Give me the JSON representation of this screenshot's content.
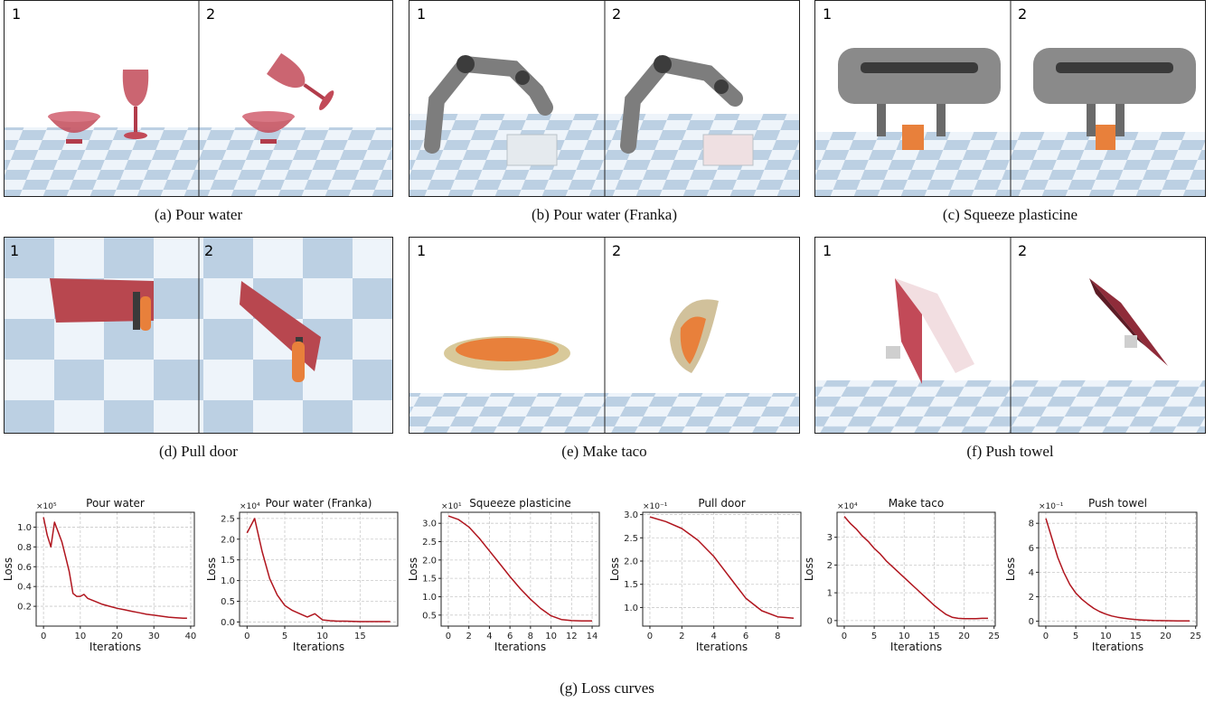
{
  "figure_labels": {
    "frame1": "1",
    "frame2": "2"
  },
  "panels": [
    {
      "id": "a",
      "caption": "(a) Pour water"
    },
    {
      "id": "b",
      "caption": "(b) Pour water (Franka)"
    },
    {
      "id": "c",
      "caption": "(c) Squeeze plasticine"
    },
    {
      "id": "d",
      "caption": "(d) Pull door"
    },
    {
      "id": "e",
      "caption": "(e) Make taco"
    },
    {
      "id": "f",
      "caption": "(f) Push towel"
    }
  ],
  "loss_caption": "(g) Loss curves",
  "colors": {
    "curve": "#b0151e",
    "checker": "#bcd0e3",
    "object_red": "#c24a58",
    "plasticine": "#e8803b"
  },
  "chart_data": [
    {
      "type": "line",
      "title": "Pour water",
      "xlabel": "Iterations",
      "ylabel": "Loss",
      "exponent": "×10⁵",
      "xlim": [
        -2,
        41
      ],
      "ylim": [
        0,
        1.15
      ],
      "xticks": [
        0,
        10,
        20,
        30,
        40
      ],
      "yticks": [
        0.2,
        0.4,
        0.6,
        0.8,
        1.0
      ],
      "ytick_labels": [
        "0.2",
        "0.4",
        "0.6",
        "0.8",
        "1.0"
      ],
      "grid": true,
      "x": [
        0,
        1,
        2,
        3,
        4,
        5,
        6,
        7,
        8,
        9,
        10,
        11,
        12,
        14,
        16,
        18,
        20,
        22,
        24,
        26,
        28,
        30,
        32,
        34,
        36,
        38,
        39
      ],
      "y": [
        1.1,
        0.92,
        0.8,
        1.05,
        0.95,
        0.85,
        0.7,
        0.55,
        0.33,
        0.3,
        0.3,
        0.32,
        0.28,
        0.25,
        0.22,
        0.2,
        0.18,
        0.165,
        0.15,
        0.135,
        0.12,
        0.11,
        0.1,
        0.09,
        0.085,
        0.08,
        0.08
      ]
    },
    {
      "type": "line",
      "title": "Pour water (Franka)",
      "xlabel": "Iterations",
      "ylabel": "Loss",
      "exponent": "×10⁴",
      "xlim": [
        -1,
        20
      ],
      "ylim": [
        -0.1,
        2.65
      ],
      "xticks": [
        0,
        5,
        10,
        15
      ],
      "yticks": [
        0.0,
        0.5,
        1.0,
        1.5,
        2.0,
        2.5
      ],
      "ytick_labels": [
        "0.0",
        "0.5",
        "1.0",
        "1.5",
        "2.0",
        "2.5"
      ],
      "grid": true,
      "x": [
        0,
        1,
        2,
        3,
        4,
        5,
        6,
        7,
        8,
        9,
        10,
        11,
        12,
        13,
        14,
        15,
        16,
        17,
        18,
        19
      ],
      "y": [
        2.15,
        2.5,
        1.7,
        1.05,
        0.65,
        0.4,
        0.28,
        0.2,
        0.12,
        0.2,
        0.05,
        0.03,
        0.02,
        0.02,
        0.015,
        0.01,
        0.01,
        0.01,
        0.01,
        0.01
      ]
    },
    {
      "type": "line",
      "title": "Squeeze plasticine",
      "xlabel": "Iterations",
      "ylabel": "Loss",
      "exponent": "×10¹",
      "xlim": [
        -0.7,
        14.7
      ],
      "ylim": [
        0.2,
        3.3
      ],
      "xticks": [
        0,
        2,
        4,
        6,
        8,
        10,
        12,
        14
      ],
      "yticks": [
        0.5,
        1.0,
        1.5,
        2.0,
        2.5,
        3.0
      ],
      "ytick_labels": [
        "0.5",
        "1.0",
        "1.5",
        "2.0",
        "2.5",
        "3.0"
      ],
      "grid": true,
      "x": [
        0,
        1,
        2,
        3,
        4,
        5,
        6,
        7,
        8,
        9,
        10,
        11,
        12,
        13,
        14
      ],
      "y": [
        3.2,
        3.1,
        2.9,
        2.6,
        2.25,
        1.9,
        1.55,
        1.22,
        0.93,
        0.68,
        0.48,
        0.38,
        0.35,
        0.34,
        0.34
      ]
    },
    {
      "type": "line",
      "title": "Pull door",
      "xlabel": "Iterations",
      "ylabel": "Loss",
      "exponent": "×10⁻¹",
      "xlim": [
        -0.45,
        9.45
      ],
      "ylim": [
        0.6,
        3.05
      ],
      "xticks": [
        0,
        2,
        4,
        6,
        8
      ],
      "yticks": [
        1.0,
        1.5,
        2.0,
        2.5,
        3.0
      ],
      "ytick_labels": [
        "1.0",
        "1.5",
        "2.0",
        "2.5",
        "3.0"
      ],
      "grid": true,
      "x": [
        0,
        1,
        2,
        3,
        4,
        5,
        6,
        7,
        8,
        9
      ],
      "y": [
        2.95,
        2.85,
        2.7,
        2.45,
        2.1,
        1.65,
        1.2,
        0.93,
        0.8,
        0.77
      ]
    },
    {
      "type": "line",
      "title": "Make taco",
      "xlabel": "Iterations",
      "ylabel": "Loss",
      "exponent": "×10⁴",
      "xlim": [
        -1.2,
        25.2
      ],
      "ylim": [
        -0.2,
        3.9
      ],
      "xticks": [
        0,
        5,
        10,
        15,
        20,
        25
      ],
      "yticks": [
        0,
        1,
        2,
        3
      ],
      "ytick_labels": [
        "0",
        "1",
        "2",
        "3"
      ],
      "grid": true,
      "x": [
        0,
        1,
        2,
        3,
        4,
        5,
        6,
        7,
        8,
        9,
        10,
        11,
        12,
        13,
        14,
        15,
        16,
        17,
        18,
        19,
        20,
        21,
        22,
        23,
        24
      ],
      "y": [
        3.75,
        3.5,
        3.3,
        3.05,
        2.85,
        2.6,
        2.4,
        2.15,
        1.95,
        1.75,
        1.55,
        1.35,
        1.15,
        0.95,
        0.75,
        0.55,
        0.38,
        0.22,
        0.12,
        0.08,
        0.07,
        0.07,
        0.07,
        0.08,
        0.08
      ]
    },
    {
      "type": "line",
      "title": "Push towel",
      "xlabel": "Iterations",
      "ylabel": "Loss",
      "exponent": "×10⁻¹",
      "xlim": [
        -1.2,
        25.2
      ],
      "ylim": [
        -0.4,
        8.9
      ],
      "xticks": [
        0,
        5,
        10,
        15,
        20,
        25
      ],
      "yticks": [
        0,
        2,
        4,
        6,
        8
      ],
      "ytick_labels": [
        "0",
        "2",
        "4",
        "6",
        "8"
      ],
      "grid": true,
      "x": [
        0,
        1,
        2,
        3,
        4,
        5,
        6,
        7,
        8,
        9,
        10,
        11,
        12,
        13,
        14,
        15,
        16,
        17,
        18,
        19,
        20,
        21,
        22,
        23,
        24
      ],
      "y": [
        8.4,
        6.8,
        5.2,
        4.0,
        3.0,
        2.3,
        1.8,
        1.4,
        1.05,
        0.78,
        0.58,
        0.43,
        0.32,
        0.24,
        0.18,
        0.13,
        0.1,
        0.08,
        0.06,
        0.05,
        0.04,
        0.035,
        0.03,
        0.03,
        0.03
      ]
    }
  ]
}
